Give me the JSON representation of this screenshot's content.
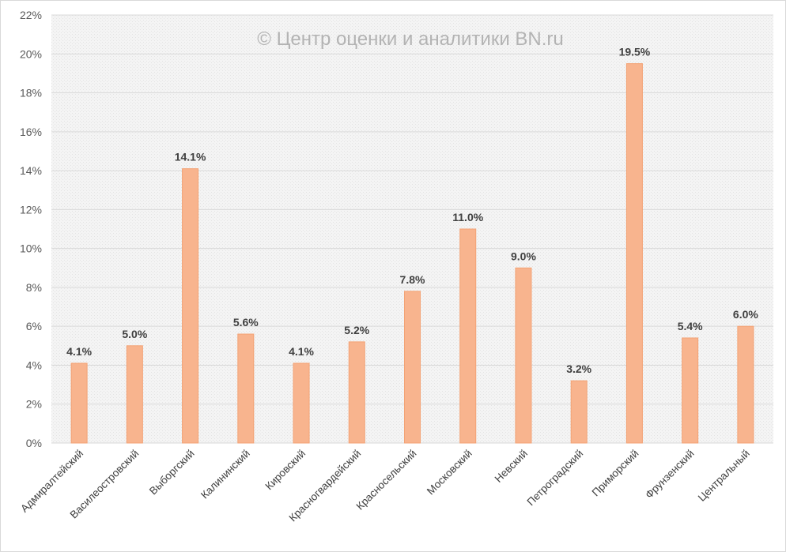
{
  "watermark": "© Центр оценки и аналитики BN.ru",
  "colors": {
    "bar": "#F8B48E",
    "bar_stroke": "#F3A274",
    "grid": "#d9d9d9",
    "plot_bg": "#f2f2f2"
  },
  "chart_data": {
    "type": "bar",
    "categories": [
      "Адмиралтейский",
      "Василеостровский",
      "Выборгский",
      "Калининский",
      "Кировский",
      "Красногвардейский",
      "Красносельский",
      "Московский",
      "Невский",
      "Петроградский",
      "Приморский",
      "Фрунзенский",
      "Центральный"
    ],
    "values": [
      4.1,
      5.0,
      14.1,
      5.6,
      4.1,
      5.2,
      7.8,
      11.0,
      9.0,
      3.2,
      19.5,
      5.4,
      6.0
    ],
    "data_labels": [
      "4.1%",
      "5.0%",
      "14.1%",
      "5.6%",
      "4.1%",
      "5.2%",
      "7.8%",
      "11.0%",
      "9.0%",
      "3.2%",
      "19.5%",
      "5.4%",
      "6.0%"
    ],
    "ylim": [
      0,
      22
    ],
    "yticks": [
      "0%",
      "2%",
      "4%",
      "6%",
      "8%",
      "10%",
      "12%",
      "14%",
      "16%",
      "18%",
      "20%",
      "22%"
    ],
    "grid": true,
    "legend": "none"
  }
}
